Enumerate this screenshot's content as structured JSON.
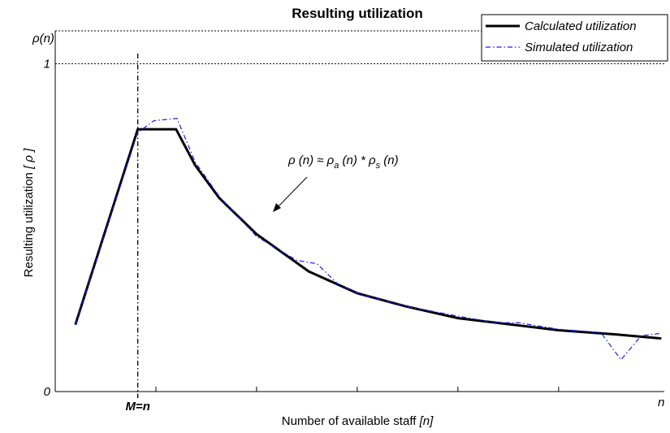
{
  "chart_data": {
    "type": "line",
    "title": "Resulting utilization",
    "x_label": "Number of available staff",
    "x_label_unit": "[n]",
    "y_label": "Resulting utilization",
    "y_label_unit": "[ ρ ]",
    "y_corner_label": "ρ(n)",
    "x_corner_label": "n",
    "xlim": [
      0,
      6.05
    ],
    "xticks": [
      1,
      2,
      3,
      4,
      5
    ],
    "ylim": [
      0,
      1.1
    ],
    "yticks": [
      0,
      1
    ],
    "grid": true,
    "vline": {
      "x": 0.82,
      "label": "M=n"
    },
    "annotation": [
      "ρ (n) ≈ ρ",
      "a",
      " (n) * ρ",
      "s",
      " (n)"
    ],
    "legend": "upper right",
    "series": [
      {
        "name": "Calculated utilization",
        "color": "#000000",
        "style": "solid",
        "x": [
          0.2,
          0.82,
          1.2,
          1.39,
          1.63,
          2.0,
          2.52,
          3.0,
          3.48,
          4.0,
          5.0,
          5.58,
          6.02
        ],
        "values": [
          0.204,
          0.8,
          0.8,
          0.69,
          0.59,
          0.48,
          0.366,
          0.3,
          0.26,
          0.224,
          0.187,
          0.174,
          0.162
        ]
      },
      {
        "name": "Simulated utilization",
        "color": "#1a1aff",
        "style": "dashdot",
        "x": [
          0.2,
          0.82,
          0.98,
          1.21,
          1.39,
          1.63,
          2.0,
          2.4,
          2.6,
          2.8,
          3.0,
          3.48,
          4.0,
          4.37,
          4.6,
          5.0,
          5.42,
          5.62,
          5.82,
          6.0
        ],
        "values": [
          0.204,
          0.79,
          0.826,
          0.833,
          0.7,
          0.595,
          0.473,
          0.4,
          0.39,
          0.33,
          0.3,
          0.26,
          0.23,
          0.21,
          0.21,
          0.19,
          0.18,
          0.097,
          0.17,
          0.177
        ]
      }
    ]
  }
}
